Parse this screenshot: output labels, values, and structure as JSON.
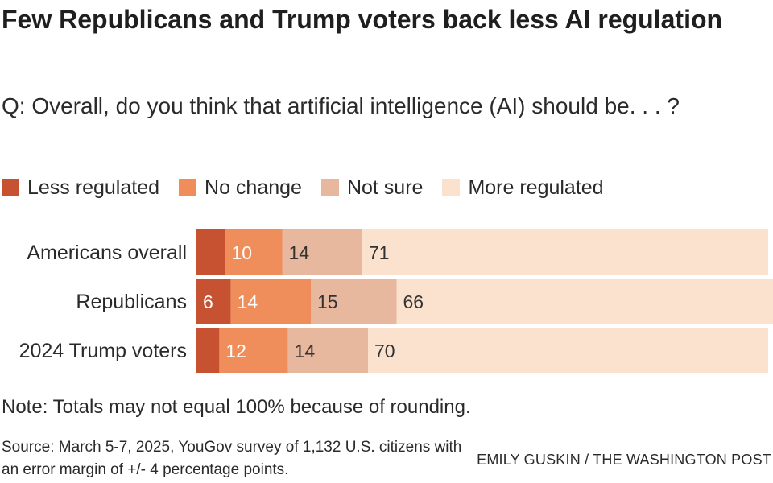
{
  "colors": {
    "less_regulated": "#c65232",
    "no_change": "#f08e5b",
    "not_sure": "#e8b89e",
    "more_regulated": "#fbe2cf",
    "label_light": "#ffffff",
    "label_dark": "#333333"
  },
  "chart_data": {
    "type": "bar",
    "orientation": "horizontal",
    "stacked": true,
    "title": "Few Republicans and Trump voters back less AI regulation",
    "subtitle": "Q: Overall, do you think that artificial intelligence (AI) should be. . . ?",
    "categories": [
      "Americans overall",
      "Republicans",
      "2024 Trump voters"
    ],
    "series": [
      {
        "name": "Less regulated",
        "key": "less_regulated",
        "values": [
          5,
          6,
          4
        ],
        "shown_labels": [
          "",
          "6",
          ""
        ]
      },
      {
        "name": "No change",
        "key": "no_change",
        "values": [
          10,
          14,
          12
        ],
        "shown_labels": [
          "10",
          "14",
          "12"
        ]
      },
      {
        "name": "Not sure",
        "key": "not_sure",
        "values": [
          14,
          15,
          14
        ],
        "shown_labels": [
          "14",
          "15",
          "14"
        ]
      },
      {
        "name": "More regulated",
        "key": "more_regulated",
        "values": [
          71,
          66,
          70
        ],
        "shown_labels": [
          "71",
          "66",
          "70"
        ]
      }
    ],
    "xlim": [
      0,
      100
    ],
    "legend_position": "top-left"
  },
  "note": "Note: Totals may not equal 100% because of rounding.",
  "source": "Source: March 5-7, 2025, YouGov survey of 1,132 U.S. citizens with an error margin of +/- 4 percentage points.",
  "credit": "EMILY GUSKIN / THE WASHINGTON POST"
}
